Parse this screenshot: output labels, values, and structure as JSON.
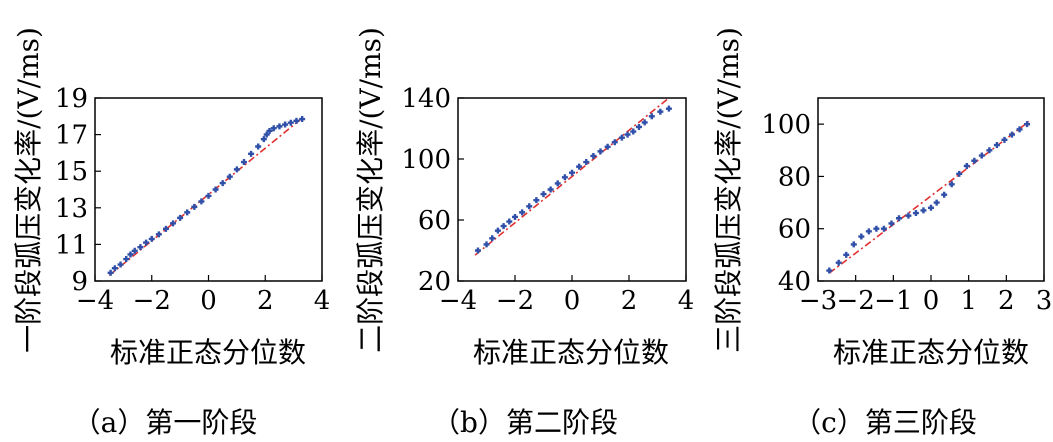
{
  "chart_data": [
    {
      "type": "scatter",
      "title": "",
      "ylabel": "一阶段弧压变化率/(V/ms)",
      "xlabel": "标准正态分位数",
      "caption": "（a）第一阶段",
      "xlim": [
        -4,
        4
      ],
      "ylim": [
        9,
        19
      ],
      "xticks": [
        -4,
        -2,
        0,
        2,
        4
      ],
      "yticks": [
        9,
        11,
        13,
        15,
        17,
        19
      ],
      "xtick_labels": [
        "−4",
        "−2",
        "0",
        "2",
        "4"
      ],
      "ytick_labels": [
        "9",
        "11",
        "13",
        "15",
        "17",
        "19"
      ],
      "reference_line": {
        "color": "#e0302e",
        "from": [
          -3.5,
          9.3
        ],
        "to": [
          3.3,
          17.9
        ]
      },
      "points_color": "#2f4fa8",
      "points": [
        [
          -3.45,
          9.45
        ],
        [
          -3.3,
          9.7
        ],
        [
          -3.1,
          9.9
        ],
        [
          -2.9,
          10.2
        ],
        [
          -2.75,
          10.45
        ],
        [
          -2.6,
          10.65
        ],
        [
          -2.4,
          10.85
        ],
        [
          -2.2,
          11.1
        ],
        [
          -2.0,
          11.3
        ],
        [
          -1.75,
          11.55
        ],
        [
          -1.5,
          11.85
        ],
        [
          -1.25,
          12.15
        ],
        [
          -1.0,
          12.45
        ],
        [
          -0.75,
          12.75
        ],
        [
          -0.5,
          13.05
        ],
        [
          -0.25,
          13.35
        ],
        [
          0.0,
          13.65
        ],
        [
          0.25,
          14.0
        ],
        [
          0.5,
          14.35
        ],
        [
          0.75,
          14.7
        ],
        [
          1.0,
          15.1
        ],
        [
          1.25,
          15.5
        ],
        [
          1.5,
          15.95
        ],
        [
          1.75,
          16.35
        ],
        [
          1.95,
          16.75
        ],
        [
          2.05,
          17.0
        ],
        [
          2.15,
          17.2
        ],
        [
          2.3,
          17.35
        ],
        [
          2.5,
          17.45
        ],
        [
          2.7,
          17.55
        ],
        [
          2.9,
          17.65
        ],
        [
          3.1,
          17.75
        ],
        [
          3.3,
          17.85
        ]
      ]
    },
    {
      "type": "scatter",
      "title": "",
      "ylabel": "二阶段弧压变化率/(V/ms)",
      "xlabel": "标准正态分位数",
      "caption": "（b）第二阶段",
      "xlim": [
        -4,
        4
      ],
      "ylim": [
        20,
        140
      ],
      "xticks": [
        -4,
        -2,
        0,
        2,
        4
      ],
      "yticks": [
        20,
        60,
        100,
        140
      ],
      "xtick_labels": [
        "−4",
        "−2",
        "0",
        "2",
        "4"
      ],
      "ytick_labels": [
        "20",
        "60",
        "100",
        "140"
      ],
      "reference_line": {
        "color": "#e0302e",
        "from": [
          -3.4,
          37
        ],
        "to": [
          3.4,
          140
        ]
      },
      "points_color": "#2f4fa8",
      "points": [
        [
          -3.3,
          40
        ],
        [
          -3.0,
          44
        ],
        [
          -2.8,
          48
        ],
        [
          -2.6,
          53
        ],
        [
          -2.4,
          56
        ],
        [
          -2.2,
          59
        ],
        [
          -2.0,
          62
        ],
        [
          -1.75,
          65
        ],
        [
          -1.5,
          69
        ],
        [
          -1.25,
          73
        ],
        [
          -1.0,
          77
        ],
        [
          -0.75,
          80
        ],
        [
          -0.5,
          84
        ],
        [
          -0.25,
          88
        ],
        [
          0.0,
          91
        ],
        [
          0.25,
          95
        ],
        [
          0.5,
          98
        ],
        [
          0.75,
          102
        ],
        [
          1.0,
          105
        ],
        [
          1.25,
          108
        ],
        [
          1.5,
          111
        ],
        [
          1.75,
          114
        ],
        [
          1.95,
          116
        ],
        [
          2.15,
          118
        ],
        [
          2.35,
          121
        ],
        [
          2.55,
          124
        ],
        [
          2.8,
          128
        ],
        [
          3.1,
          131
        ],
        [
          3.4,
          133
        ]
      ]
    },
    {
      "type": "scatter",
      "title": "",
      "ylabel": "三阶段弧压变化率/(V/ms)",
      "xlabel": "标准正态分位数",
      "caption": "（c）第三阶段",
      "xlim": [
        -3,
        3
      ],
      "ylim": [
        40,
        110
      ],
      "xticks": [
        -3,
        -2,
        -1,
        0,
        1,
        2,
        3
      ],
      "yticks": [
        40,
        60,
        80,
        100
      ],
      "xtick_labels": [
        "−3",
        "−2",
        "−1",
        "0",
        "1",
        "2",
        "3"
      ],
      "ytick_labels": [
        "40",
        "60",
        "80",
        "100"
      ],
      "reference_line": {
        "color": "#e0302e",
        "from": [
          -2.7,
          43
        ],
        "to": [
          2.6,
          101
        ]
      },
      "points_color": "#2f4fa8",
      "points": [
        [
          -2.7,
          44
        ],
        [
          -2.45,
          47
        ],
        [
          -2.25,
          50
        ],
        [
          -2.05,
          54
        ],
        [
          -1.85,
          57
        ],
        [
          -1.65,
          59
        ],
        [
          -1.45,
          60
        ],
        [
          -1.25,
          60
        ],
        [
          -1.05,
          62
        ],
        [
          -0.85,
          64
        ],
        [
          -0.6,
          65
        ],
        [
          -0.4,
          66
        ],
        [
          -0.2,
          67
        ],
        [
          0.0,
          68
        ],
        [
          0.15,
          70
        ],
        [
          0.35,
          73
        ],
        [
          0.55,
          77
        ],
        [
          0.75,
          81
        ],
        [
          0.95,
          84
        ],
        [
          1.15,
          86
        ],
        [
          1.35,
          88
        ],
        [
          1.55,
          90
        ],
        [
          1.75,
          92
        ],
        [
          1.95,
          94
        ],
        [
          2.15,
          96
        ],
        [
          2.35,
          98
        ],
        [
          2.55,
          100
        ]
      ]
    }
  ]
}
